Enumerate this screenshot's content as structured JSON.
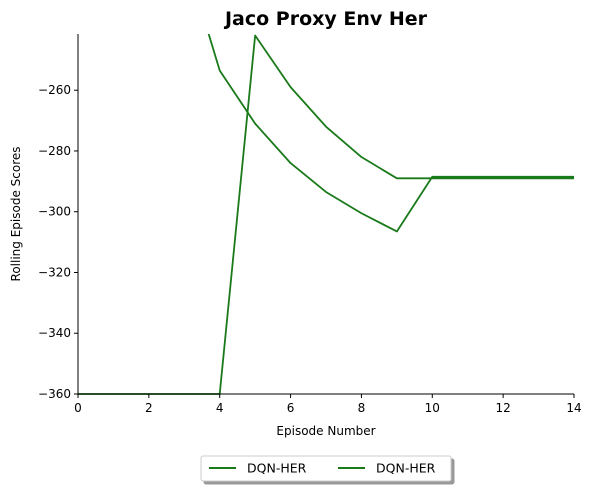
{
  "chart_data": {
    "type": "line",
    "title": "Jaco Proxy Env Her",
    "xlabel": "Episode Number",
    "ylabel": "Rolling Episode Scores",
    "xlim": [
      0,
      14
    ],
    "ylim": [
      -360,
      -241.5
    ],
    "xticks": [
      0,
      2,
      4,
      6,
      8,
      10,
      12,
      14
    ],
    "yticks": [
      -360,
      -340,
      -320,
      -300,
      -280,
      -260
    ],
    "grid": false,
    "legend": {
      "placement": "bottom-center",
      "columns": 2
    },
    "colors": {
      "series": "#1a7a1a"
    },
    "series": [
      {
        "name": "DQN-HER",
        "x": [
          0,
          1,
          2,
          3,
          4,
          5,
          6,
          7,
          8,
          9,
          10,
          11,
          12,
          13,
          14
        ],
        "y": [
          -360,
          -360,
          -360,
          -360,
          -360,
          -242,
          -259,
          -272,
          -282,
          -289,
          -289,
          -289,
          -289,
          -289,
          -289
        ]
      },
      {
        "name": "DQN-HER",
        "x": [
          3,
          4,
          5,
          6,
          7,
          8,
          9,
          10,
          11,
          12,
          13,
          14
        ],
        "y": [
          -215,
          -253.5,
          -271,
          -284,
          -293.5,
          -300.5,
          -306.5,
          -288.5,
          -288.5,
          -288.5,
          -288.5,
          -288.5
        ]
      }
    ]
  }
}
